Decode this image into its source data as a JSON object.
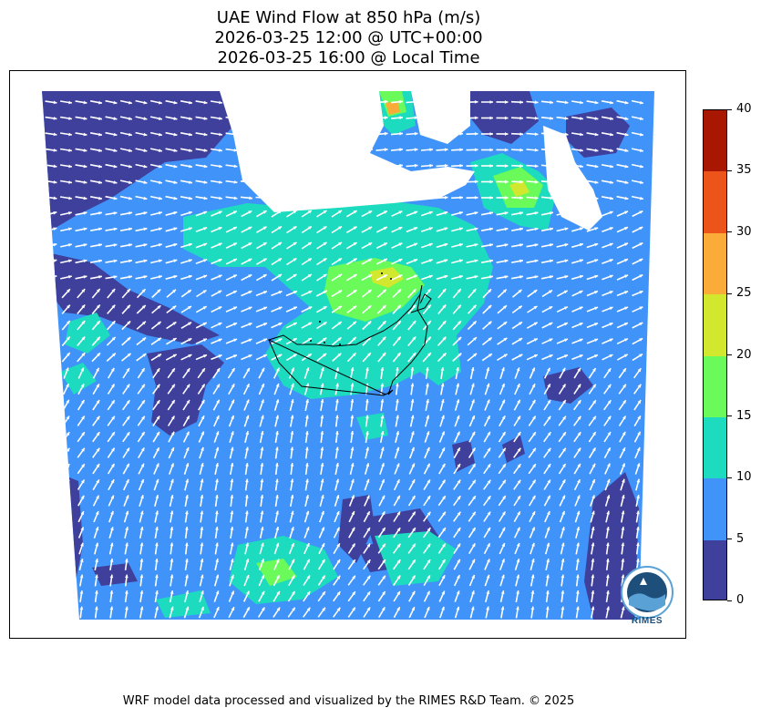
{
  "title": {
    "line1": "UAE Wind Flow at 850 hPa (m/s)",
    "line2": "2026-03-25 12:00 @ UTC+00:00",
    "line3": "2026-03-25 16:00 @ Local Time"
  },
  "map": {
    "region": "UAE",
    "level": "850 hPa",
    "variable": "wind speed",
    "units": "m/s",
    "vector_field": "wind direction arrows"
  },
  "colorbar": {
    "min": 0,
    "max": 40,
    "step": 5,
    "ticks": [
      "0",
      "5",
      "10",
      "15",
      "20",
      "25",
      "30",
      "35",
      "40"
    ],
    "colors": [
      "#3f3f9c",
      "#4093f8",
      "#1ddbbe",
      "#6afa5a",
      "#d2e82e",
      "#fbac38",
      "#ec541a",
      "#a81702"
    ]
  },
  "logo": {
    "name": "RIMES",
    "text": "RIMES"
  },
  "footer": {
    "credit": "WRF model data processed and visualized by the RIMES R&D Team. © 2025"
  }
}
